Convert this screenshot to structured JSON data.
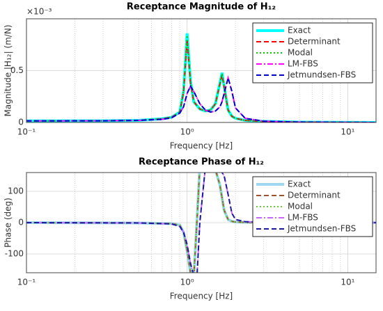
{
  "chart_data": [
    {
      "type": "line",
      "title": "Receptance Magnitude of H₁₂",
      "x_label": "Frequency [Hz]",
      "y_label": "Magnitude  |H₁₂| (m/N)",
      "y_multiplier": "×10⁻³",
      "log_x": true,
      "grid": true,
      "legend": "upper right",
      "xlim": [
        0.1,
        15
      ],
      "xticks": [
        {
          "value": 0.1,
          "label": "10⁻¹"
        },
        {
          "value": 1,
          "label": "10⁰"
        },
        {
          "value": 10,
          "label": "10¹"
        }
      ],
      "ylim": [
        0,
        1
      ],
      "yticks": [
        0,
        0.5
      ],
      "x": [
        0.1,
        0.3,
        0.5,
        0.7,
        0.8,
        0.9,
        0.95,
        1.0,
        1.05,
        1.1,
        1.2,
        1.3,
        1.4,
        1.5,
        1.6,
        1.65,
        1.7,
        1.8,
        1.9,
        2.0,
        2.3,
        3,
        5,
        10,
        15
      ],
      "series": [
        {
          "name": "Exact",
          "color": "#00ffff",
          "style": "solid",
          "width": 4,
          "values": [
            0.015,
            0.016,
            0.02,
            0.035,
            0.05,
            0.1,
            0.3,
            0.86,
            0.4,
            0.2,
            0.13,
            0.11,
            0.12,
            0.18,
            0.38,
            0.48,
            0.35,
            0.12,
            0.06,
            0.04,
            0.02,
            0.01,
            0.003,
            0.001,
            0
          ]
        },
        {
          "name": "Determinant",
          "color": "#ff0000",
          "style": "dashed",
          "width": 2,
          "values": [
            0.015,
            0.016,
            0.02,
            0.035,
            0.05,
            0.1,
            0.29,
            0.8,
            0.38,
            0.2,
            0.13,
            0.11,
            0.12,
            0.18,
            0.37,
            0.46,
            0.34,
            0.12,
            0.06,
            0.04,
            0.02,
            0.01,
            0.003,
            0.001,
            0
          ]
        },
        {
          "name": "Modal",
          "color": "#00cc00",
          "style": "dotted",
          "width": 2,
          "values": [
            0.015,
            0.016,
            0.02,
            0.035,
            0.05,
            0.1,
            0.3,
            0.84,
            0.4,
            0.2,
            0.13,
            0.11,
            0.12,
            0.18,
            0.38,
            0.47,
            0.35,
            0.12,
            0.06,
            0.04,
            0.02,
            0.01,
            0.003,
            0.001,
            0
          ]
        },
        {
          "name": "LM-FBS",
          "color": "#ff00ff",
          "style": "dashdot",
          "width": 2,
          "values": [
            0.015,
            0.016,
            0.02,
            0.03,
            0.045,
            0.09,
            0.15,
            0.28,
            0.35,
            0.3,
            0.18,
            0.12,
            0.1,
            0.11,
            0.15,
            0.2,
            0.28,
            0.43,
            0.3,
            0.14,
            0.04,
            0.012,
            0.004,
            0.001,
            0
          ]
        },
        {
          "name": "Jetmundsen-FBS",
          "color": "#0000cc",
          "style": "dashed",
          "width": 2,
          "values": [
            0.015,
            0.016,
            0.02,
            0.03,
            0.045,
            0.09,
            0.15,
            0.28,
            0.35,
            0.3,
            0.18,
            0.12,
            0.1,
            0.11,
            0.15,
            0.2,
            0.28,
            0.43,
            0.3,
            0.14,
            0.04,
            0.012,
            0.004,
            0.001,
            0
          ]
        }
      ]
    },
    {
      "type": "line",
      "title": "Receptance Phase of H₁₂",
      "x_label": "Frequency [Hz]",
      "y_label": "Phase (deg)",
      "log_x": true,
      "grid": true,
      "legend": "upper right",
      "xlim": [
        0.1,
        15
      ],
      "xticks": [
        {
          "value": 0.1,
          "label": "10⁻¹"
        },
        {
          "value": 1,
          "label": "10⁰"
        },
        {
          "value": 10,
          "label": "10¹"
        }
      ],
      "ylim": [
        -160,
        160
      ],
      "yticks": [
        -100,
        0,
        100
      ],
      "x": [
        0.1,
        0.5,
        0.8,
        0.9,
        0.95,
        1.0,
        1.05,
        1.1,
        1.15,
        1.2,
        1.3,
        1.4,
        1.5,
        1.6,
        1.7,
        1.8,
        1.9,
        2.0,
        2.3,
        3,
        15
      ],
      "series": [
        {
          "name": "Exact",
          "color": "#9fd6f2",
          "style": "solid",
          "width": 4,
          "values": [
            0,
            -1,
            -3,
            -8,
            -30,
            -90,
            -160,
            -175,
            0,
            178,
            178,
            176,
            170,
            120,
            40,
            10,
            4,
            2,
            1,
            0,
            0
          ]
        },
        {
          "name": "Determinant",
          "color": "#a0522d",
          "style": "dashed",
          "width": 2,
          "values": [
            0,
            -1,
            -3,
            -8,
            -30,
            -90,
            -160,
            -175,
            0,
            178,
            178,
            176,
            170,
            120,
            40,
            10,
            4,
            2,
            1,
            0,
            0
          ]
        },
        {
          "name": "Modal",
          "color": "#66cc33",
          "style": "dotted",
          "width": 2,
          "values": [
            0,
            -1,
            -3,
            -8,
            -30,
            -90,
            -160,
            -175,
            0,
            178,
            178,
            176,
            170,
            120,
            40,
            10,
            4,
            2,
            1,
            0,
            0
          ]
        },
        {
          "name": "LM-FBS",
          "color": "#cc66ff",
          "style": "dashdot",
          "width": 2,
          "values": [
            0,
            -1,
            -4,
            -12,
            -30,
            -70,
            -130,
            -170,
            -178,
            0,
            178,
            178,
            176,
            170,
            150,
            90,
            30,
            10,
            3,
            1,
            0
          ]
        },
        {
          "name": "Jetmundsen-FBS",
          "color": "#1a1aa0",
          "style": "dashed",
          "width": 2,
          "values": [
            0,
            -1,
            -4,
            -12,
            -30,
            -70,
            -130,
            -170,
            -178,
            0,
            178,
            178,
            176,
            170,
            150,
            90,
            30,
            10,
            3,
            1,
            0
          ]
        }
      ]
    }
  ]
}
